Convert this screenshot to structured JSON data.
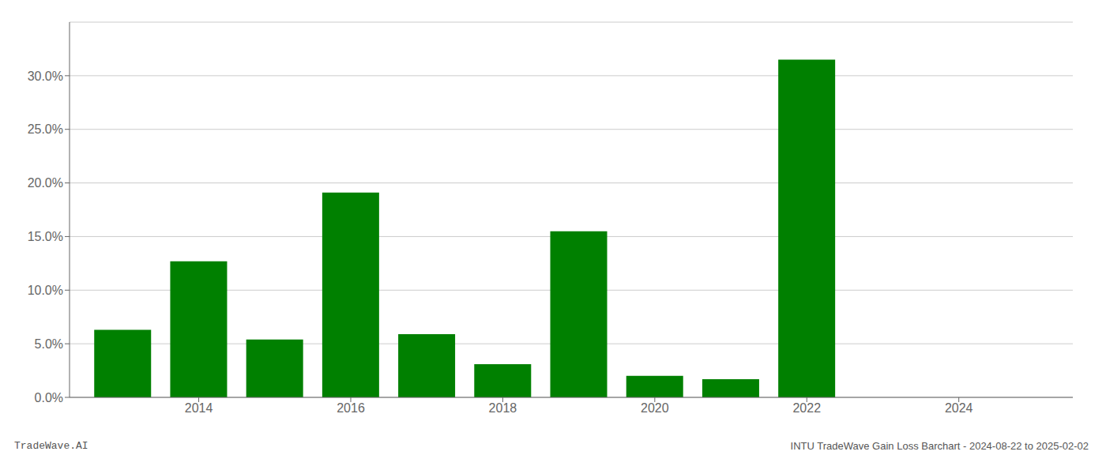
{
  "chart_data": {
    "type": "bar",
    "x": [
      2013,
      2014,
      2015,
      2016,
      2017,
      2018,
      2019,
      2020,
      2021,
      2022
    ],
    "values": [
      0.063,
      0.127,
      0.054,
      0.191,
      0.059,
      0.031,
      0.155,
      0.02,
      0.017,
      0.315
    ],
    "color": "#008000",
    "xlim": [
      2012.3,
      2025.5
    ],
    "xticks": [
      2014,
      2016,
      2018,
      2020,
      2022,
      2024
    ],
    "ylim": [
      0,
      0.35
    ],
    "yticks": [
      {
        "value": 0.0,
        "label": "0.0%"
      },
      {
        "value": 0.05,
        "label": "5.0%"
      },
      {
        "value": 0.1,
        "label": "10.0%"
      },
      {
        "value": 0.15,
        "label": "15.0%"
      },
      {
        "value": 0.2,
        "label": "20.0%"
      },
      {
        "value": 0.25,
        "label": "25.0%"
      },
      {
        "value": 0.3,
        "label": "30.0%"
      }
    ],
    "grid": true,
    "annotations": [
      "TradeWave.AI",
      "INTU TradeWave Gain Loss Barchart - 2024-08-22 to 2025-02-02"
    ]
  }
}
